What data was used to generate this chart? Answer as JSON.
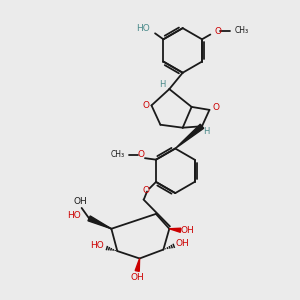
{
  "bg_color": "#ebebeb",
  "bond_color": "#1a1a1a",
  "oxygen_color": "#cc0000",
  "stereo_h_color": "#4a8a8a",
  "bond_lw": 1.3,
  "figsize": [
    3.0,
    3.0
  ],
  "dpi": 100,
  "xlim": [
    0,
    10
  ],
  "ylim": [
    0,
    10
  ]
}
